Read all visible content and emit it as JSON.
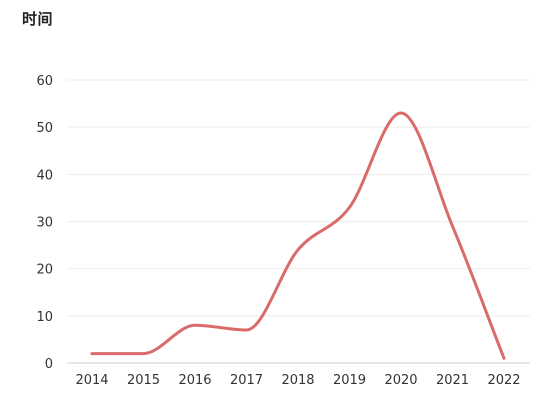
{
  "chart_data": {
    "type": "line",
    "title": "时间",
    "x": [
      "2014",
      "2015",
      "2016",
      "2017",
      "2018",
      "2019",
      "2020",
      "2021",
      "2022"
    ],
    "series": [
      {
        "values": [
          2,
          2,
          8,
          7,
          24,
          33,
          53,
          29,
          1
        ],
        "color": "#d96b6b",
        "smooth": true
      }
    ],
    "ylim": [
      0,
      60
    ],
    "yticks": [
      0,
      10,
      20,
      30,
      40,
      50,
      60
    ],
    "grid": true,
    "legend": "none"
  }
}
